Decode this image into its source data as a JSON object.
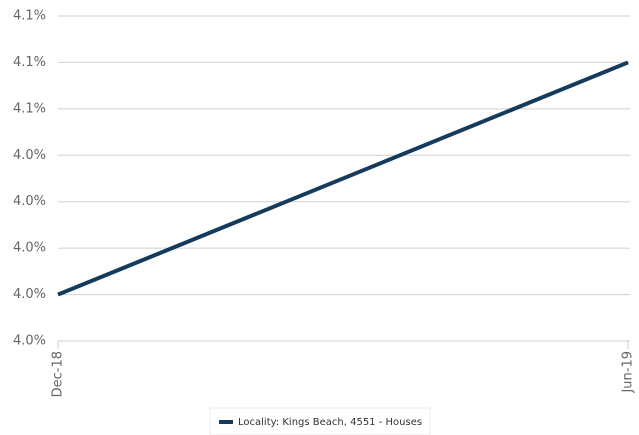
{
  "chart_data": {
    "type": "line",
    "categories": [
      "Dec-18",
      "Jun-19"
    ],
    "series": [
      {
        "name": "Locality: Kings Beach, 4551 - Houses",
        "color": "#143a5c",
        "values": [
          3.98,
          4.08
        ]
      }
    ],
    "ylim": [
      3.96,
      4.1
    ],
    "yticks": [
      {
        "value": 3.96,
        "label": "4.0%"
      },
      {
        "value": 3.98,
        "label": "4.0%"
      },
      {
        "value": 4.0,
        "label": "4.0%"
      },
      {
        "value": 4.02,
        "label": "4.0%"
      },
      {
        "value": 4.04,
        "label": "4.0%"
      },
      {
        "value": 4.06,
        "label": "4.1%"
      },
      {
        "value": 4.08,
        "label": "4.1%"
      },
      {
        "value": 4.1,
        "label": "4.1%"
      }
    ],
    "grid": true,
    "legend": "bottom"
  }
}
